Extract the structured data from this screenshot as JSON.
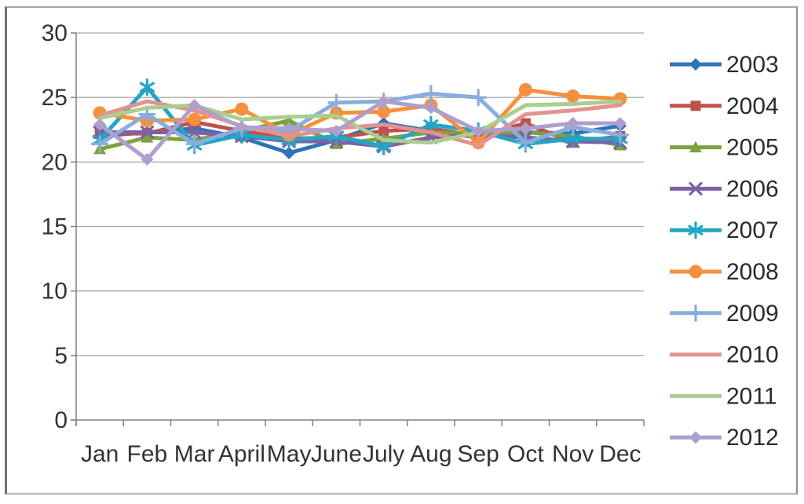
{
  "chart_data": {
    "type": "line",
    "title": "",
    "xlabel": "",
    "ylabel": "",
    "grid": true,
    "legend_position": "right",
    "categories": [
      "Jan",
      "Feb",
      "Mar",
      "April",
      "May",
      "June",
      "July",
      "Aug",
      "Sep",
      "Oct",
      "Nov",
      "Dec"
    ],
    "y_axis": {
      "min": 0,
      "max": 30,
      "step": 5,
      "tick_labels": [
        "0",
        "5",
        "10",
        "15",
        "20",
        "25",
        "30"
      ]
    },
    "ylim": [
      0,
      30
    ],
    "series": [
      {
        "name": "2003",
        "color": "#2E75B6",
        "marker": "diamond",
        "values": [
          22.0,
          22.3,
          22.6,
          21.9,
          20.7,
          21.7,
          23.0,
          22.4,
          21.9,
          22.3,
          22.2,
          22.8
        ]
      },
      {
        "name": "2004",
        "color": "#C0504D",
        "marker": "square",
        "values": [
          22.2,
          22.2,
          23.1,
          22.4,
          21.8,
          21.9,
          22.4,
          22.6,
          22.0,
          23.0,
          21.5,
          22.0
        ]
      },
      {
        "name": "2005",
        "color": "#7BA23E",
        "marker": "triangle",
        "values": [
          21.0,
          21.9,
          21.7,
          22.4,
          23.2,
          21.4,
          21.8,
          22.3,
          22.2,
          22.3,
          22.0,
          21.3
        ]
      },
      {
        "name": "2006",
        "color": "#7D61A5",
        "marker": "x",
        "values": [
          22.3,
          22.3,
          22.3,
          22.0,
          21.6,
          21.6,
          21.2,
          21.9,
          22.1,
          21.9,
          21.6,
          21.5
        ]
      },
      {
        "name": "2007",
        "color": "#23A5C4",
        "marker": "asterisk",
        "values": [
          21.7,
          25.8,
          21.3,
          22.1,
          21.7,
          22.0,
          21.2,
          22.9,
          22.4,
          21.4,
          21.8,
          21.8
        ]
      },
      {
        "name": "2008",
        "color": "#F6903D",
        "marker": "circle",
        "values": [
          23.8,
          23.2,
          23.3,
          24.1,
          22.1,
          23.8,
          23.9,
          24.4,
          21.5,
          25.6,
          25.1,
          24.9
        ]
      },
      {
        "name": "2009",
        "color": "#88ADDE",
        "marker": "plus",
        "values": [
          21.4,
          23.7,
          21.4,
          22.6,
          22.4,
          24.6,
          24.7,
          25.3,
          25.0,
          21.5,
          22.7,
          22.1
        ]
      },
      {
        "name": "2010",
        "color": "#E4928F",
        "marker": "none",
        "values": [
          23.6,
          24.7,
          24.0,
          22.8,
          22.0,
          22.6,
          22.9,
          22.3,
          21.3,
          23.7,
          24.0,
          24.4
        ]
      },
      {
        "name": "2011",
        "color": "#A9CE8E",
        "marker": "none",
        "values": [
          23.4,
          24.2,
          24.4,
          23.3,
          23.5,
          23.6,
          21.7,
          21.5,
          22.3,
          24.4,
          24.5,
          24.7
        ]
      },
      {
        "name": "2012",
        "color": "#AF9FCC",
        "marker": "diamond",
        "values": [
          22.9,
          20.2,
          24.4,
          22.7,
          22.6,
          22.4,
          24.7,
          24.2,
          22.4,
          22.6,
          23.0,
          23.0
        ]
      }
    ],
    "style": {
      "gridline_color": "#A6A6A6",
      "axis_color": "#808080",
      "label_color": "#333333",
      "background": "#FFFFFF"
    }
  }
}
